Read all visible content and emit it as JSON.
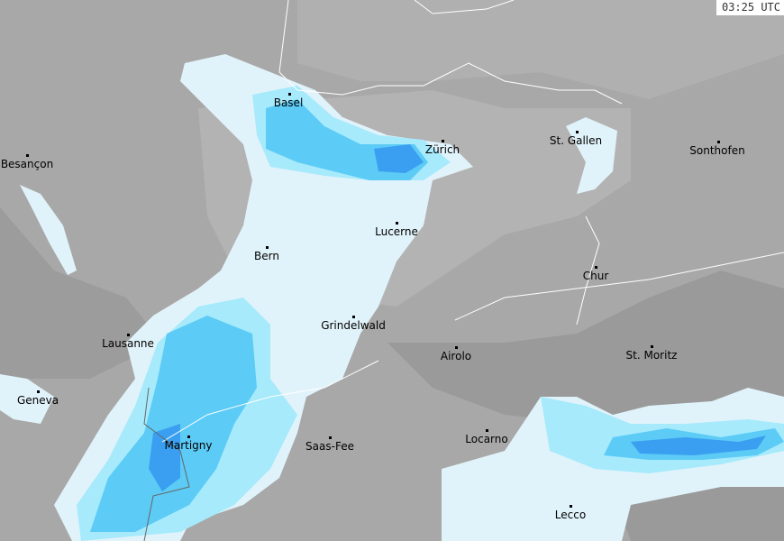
{
  "timestamp": "03:25 UTC",
  "colors": {
    "land": "#a8a8a8",
    "land_light": "#b3b3b3",
    "land_dark": "#989898",
    "precip_very_light": "#e1f3fa",
    "precip_light": "#a6eafc",
    "precip_moderate": "#5ccbf6",
    "precip_heavy": "#3a9ff0",
    "border": "#ffffff"
  },
  "cities": [
    {
      "name": "Basel"
    },
    {
      "name": "Zürich"
    },
    {
      "name": "St. Gallen"
    },
    {
      "name": "Sonthofen"
    },
    {
      "name": "Besançon"
    },
    {
      "name": "Lucerne"
    },
    {
      "name": "Bern"
    },
    {
      "name": "Chur"
    },
    {
      "name": "Grindelwald"
    },
    {
      "name": "Lausanne"
    },
    {
      "name": "Airolo"
    },
    {
      "name": "St. Moritz"
    },
    {
      "name": "Geneva"
    },
    {
      "name": "Martigny"
    },
    {
      "name": "Saas-Fee"
    },
    {
      "name": "Locarno"
    },
    {
      "name": "Lecco"
    }
  ]
}
